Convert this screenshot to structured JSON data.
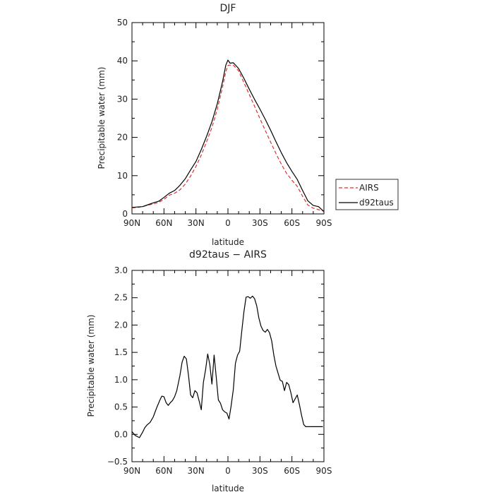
{
  "chart_data": [
    {
      "type": "line",
      "title": "DJF",
      "xlabel": "latitude",
      "ylabel": "Precipitable water  (mm)",
      "xlim": [
        90,
        -90
      ],
      "ylim": [
        0,
        50
      ],
      "x_tick_values": [
        90,
        60,
        30,
        0,
        -30,
        -60,
        -90
      ],
      "x_tick_labels": [
        "90N",
        "60N",
        "30N",
        "0",
        "30S",
        "60S",
        "90S"
      ],
      "y_tick_values": [
        0,
        10,
        20,
        30,
        40,
        50
      ],
      "y_tick_labels": [
        "0",
        "10",
        "20",
        "30",
        "40",
        "50"
      ],
      "legend_position": "right, outside plot",
      "series": [
        {
          "name": "AIRS",
          "color": "#e03030",
          "dash": "dashed",
          "x": [
            90,
            85,
            80,
            75,
            70,
            65,
            60,
            55,
            50,
            45,
            40,
            35,
            30,
            25,
            20,
            15,
            10,
            5,
            2,
            0,
            -2,
            -5,
            -10,
            -15,
            -20,
            -25,
            -30,
            -35,
            -40,
            -45,
            -50,
            -55,
            -60,
            -65,
            -70,
            -75,
            -80,
            -85,
            -90
          ],
          "y": [
            1.6,
            1.7,
            1.9,
            2.3,
            2.6,
            3.0,
            3.8,
            4.9,
            5.4,
            6.3,
            7.8,
            9.9,
            12.4,
            15.4,
            18.9,
            22.6,
            27.4,
            33.2,
            37.2,
            38.8,
            38.9,
            38.9,
            37.4,
            34.3,
            31.2,
            28.1,
            24.9,
            21.8,
            18.8,
            15.8,
            13.0,
            10.6,
            8.8,
            7.2,
            4.6,
            2.3,
            1.5,
            1.1,
            0.7
          ]
        },
        {
          "name": "d92taus",
          "color": "#000000",
          "dash": "solid",
          "x": [
            90,
            85,
            80,
            75,
            70,
            65,
            60,
            55,
            50,
            45,
            40,
            35,
            30,
            25,
            20,
            15,
            10,
            5,
            2,
            0,
            -2,
            -5,
            -10,
            -15,
            -20,
            -25,
            -30,
            -35,
            -40,
            -45,
            -50,
            -55,
            -60,
            -65,
            -70,
            -75,
            -80,
            -85,
            -90
          ],
          "y": [
            1.7,
            1.8,
            1.9,
            2.4,
            2.9,
            3.3,
            4.3,
            5.4,
            6.1,
            7.5,
            9.2,
            11.5,
            13.7,
            16.8,
            20.3,
            24.1,
            28.8,
            34.6,
            38.9,
            40.2,
            39.4,
            39.5,
            38.0,
            35.4,
            32.6,
            29.9,
            27.4,
            24.7,
            21.9,
            18.9,
            16.0,
            13.4,
            11.1,
            9.0,
            6.1,
            3.4,
            2.2,
            1.9,
            0.6
          ]
        }
      ]
    },
    {
      "type": "line",
      "title": "d92taus  −  AIRS",
      "xlabel": "latitude",
      "ylabel": "Precipitable water  (mm)",
      "xlim": [
        90,
        -90
      ],
      "ylim": [
        -0.5,
        3.0
      ],
      "x_tick_values": [
        90,
        60,
        30,
        0,
        -30,
        -60,
        -90
      ],
      "x_tick_labels": [
        "90N",
        "60N",
        "30N",
        "0",
        "30S",
        "60S",
        "90S"
      ],
      "y_tick_values": [
        -0.5,
        0.0,
        0.5,
        1.0,
        1.5,
        2.0,
        2.5,
        3.0
      ],
      "y_tick_labels": [
        "−0.5",
        "0.0",
        "0.5",
        "1.0",
        "1.5",
        "2.0",
        "2.5",
        "3.0"
      ],
      "series": [
        {
          "color": "#000000",
          "x": [
            90,
            87,
            83,
            80,
            78,
            76,
            73,
            70,
            67,
            64,
            62,
            60,
            58,
            56,
            54,
            52,
            50,
            48,
            45,
            43,
            41,
            39,
            37,
            35,
            33,
            31,
            29,
            27,
            25,
            23,
            21,
            19,
            17,
            15,
            13,
            11,
            9,
            7,
            5,
            3,
            1,
            -1,
            -3,
            -5,
            -7,
            -9,
            -11,
            -13,
            -15,
            -17,
            -19,
            -21,
            -23,
            -25,
            -27,
            -29,
            -31,
            -33,
            -35,
            -37,
            -39,
            -41,
            -43,
            -45,
            -47,
            -49,
            -51,
            -53,
            -55,
            -57,
            -59,
            -61,
            -63,
            -65,
            -67,
            -69,
            -71,
            -73,
            -75,
            -77,
            -79,
            -81,
            -83,
            -85,
            -87,
            -89
          ],
          "y": [
            0.05,
            -0.02,
            -0.06,
            0.04,
            0.12,
            0.17,
            0.22,
            0.32,
            0.48,
            0.62,
            0.7,
            0.69,
            0.58,
            0.53,
            0.58,
            0.62,
            0.69,
            0.8,
            1.08,
            1.32,
            1.43,
            1.38,
            1.08,
            0.72,
            0.67,
            0.8,
            0.76,
            0.61,
            0.45,
            0.95,
            1.18,
            1.47,
            1.28,
            0.92,
            1.45,
            1.05,
            0.63,
            0.57,
            0.45,
            0.41,
            0.39,
            0.28,
            0.52,
            0.82,
            1.3,
            1.45,
            1.52,
            1.89,
            2.25,
            2.51,
            2.52,
            2.49,
            2.53,
            2.48,
            2.35,
            2.13,
            1.98,
            1.9,
            1.87,
            1.92,
            1.86,
            1.71,
            1.45,
            1.25,
            1.12,
            0.99,
            0.97,
            0.8,
            0.95,
            0.91,
            0.76,
            0.58,
            0.65,
            0.72,
            0.55,
            0.35,
            0.18,
            0.14,
            0.14,
            0.14,
            0.14,
            0.14,
            0.14,
            0.14,
            0.14,
            0.14
          ]
        }
      ]
    }
  ]
}
